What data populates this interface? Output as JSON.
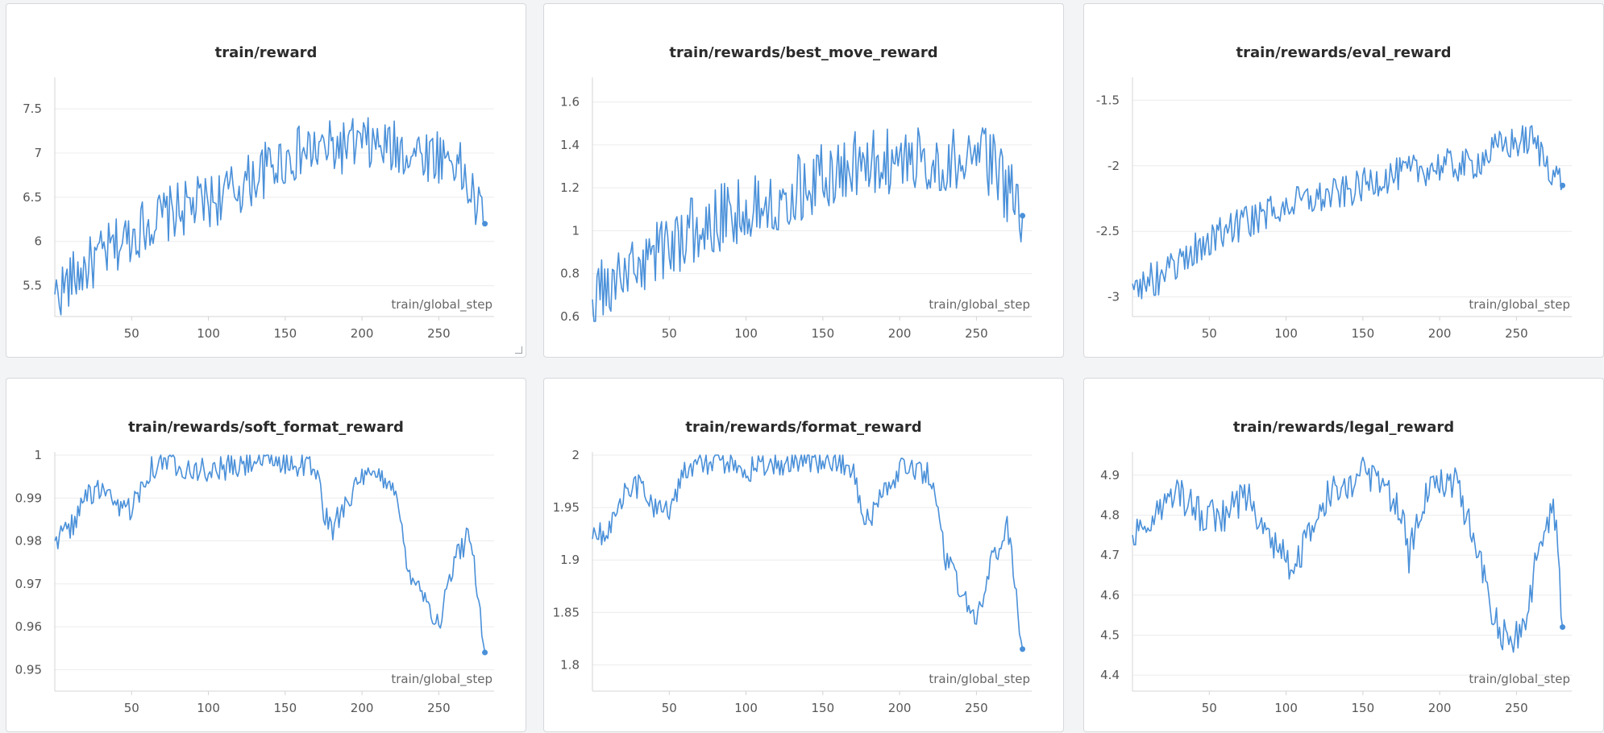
{
  "colors": {
    "line": "#4a90d9",
    "grid": "#ececec",
    "axis": "#d4d4d4"
  },
  "chart_data": [
    {
      "type": "line",
      "title": "train/reward",
      "xlabel": "train/global_step",
      "xlim": [
        0,
        286
      ],
      "ylim": [
        5.15,
        7.82
      ],
      "xticks": [
        "50",
        "100",
        "150",
        "200",
        "250"
      ],
      "yticks": [
        "5.5",
        "6",
        "6.5",
        "7",
        "7.5"
      ],
      "x": [
        0,
        20,
        40,
        60,
        80,
        100,
        120,
        140,
        160,
        180,
        200,
        220,
        240,
        260,
        280
      ],
      "y": [
        5.4,
        5.7,
        5.95,
        6.2,
        6.35,
        6.45,
        6.6,
        6.85,
        7.0,
        7.05,
        7.1,
        7.05,
        7.0,
        6.95,
        6.2
      ],
      "noise": 0.32
    },
    {
      "type": "line",
      "title": "train/rewards/best_move_reward",
      "xlabel": "train/global_step",
      "xlim": [
        0,
        286
      ],
      "ylim": [
        0.6,
        1.7
      ],
      "xticks": [
        "50",
        "100",
        "150",
        "200",
        "250"
      ],
      "yticks": [
        "0.6",
        "0.8",
        "1",
        "1.2",
        "1.4",
        "1.6"
      ],
      "x": [
        0,
        20,
        40,
        60,
        80,
        100,
        120,
        140,
        160,
        180,
        200,
        220,
        240,
        260,
        280
      ],
      "y": [
        0.68,
        0.78,
        0.9,
        0.98,
        1.05,
        1.1,
        1.16,
        1.22,
        1.28,
        1.32,
        1.33,
        1.33,
        1.33,
        1.32,
        1.07
      ],
      "noise": 0.16
    },
    {
      "type": "line",
      "title": "train/rewards/eval_reward",
      "xlabel": "train/global_step",
      "xlim": [
        0,
        286
      ],
      "ylim": [
        -3.15,
        -1.35
      ],
      "xticks": [
        "50",
        "100",
        "150",
        "200",
        "250"
      ],
      "yticks": [
        "-3",
        "-2.5",
        "-2",
        "-1.5"
      ],
      "x": [
        0,
        20,
        40,
        60,
        80,
        100,
        120,
        140,
        160,
        180,
        200,
        220,
        240,
        260,
        280
      ],
      "y": [
        -2.9,
        -2.85,
        -2.65,
        -2.5,
        -2.4,
        -2.3,
        -2.25,
        -2.2,
        -2.1,
        -2.05,
        -2.0,
        -2.0,
        -1.85,
        -1.8,
        -2.15
      ],
      "noise": 0.13
    },
    {
      "type": "line",
      "title": "train/rewards/soft_format_reward",
      "xlabel": "train/global_step",
      "xlim": [
        0,
        286
      ],
      "ylim": [
        0.945,
        1.0
      ],
      "xticks": [
        "50",
        "100",
        "150",
        "200",
        "250"
      ],
      "yticks": [
        "0.95",
        "0.96",
        "0.97",
        "0.98",
        "0.99",
        "1"
      ],
      "x": [
        0,
        10,
        20,
        30,
        40,
        50,
        60,
        70,
        80,
        90,
        100,
        110,
        120,
        130,
        140,
        150,
        160,
        170,
        175,
        180,
        190,
        200,
        210,
        220,
        230,
        240,
        250,
        260,
        270,
        275,
        280
      ],
      "y": [
        0.98,
        0.983,
        0.99,
        0.992,
        0.987,
        0.988,
        0.996,
        0.999,
        0.998,
        0.997,
        0.996,
        0.997,
        0.997,
        0.999,
        0.999,
        0.998,
        0.998,
        0.997,
        0.987,
        0.982,
        0.99,
        0.994,
        0.995,
        0.994,
        0.974,
        0.968,
        0.96,
        0.975,
        0.982,
        0.97,
        0.954
      ],
      "noise": 0.003
    },
    {
      "type": "line",
      "title": "train/rewards/format_reward",
      "xlabel": "train/global_step",
      "xlim": [
        0,
        286
      ],
      "ylim": [
        1.775,
        2.0
      ],
      "xticks": [
        "50",
        "100",
        "150",
        "200",
        "250"
      ],
      "yticks": [
        "1.8",
        "1.85",
        "1.9",
        "1.95",
        "2"
      ],
      "x": [
        0,
        10,
        20,
        30,
        40,
        50,
        60,
        70,
        80,
        90,
        100,
        110,
        120,
        130,
        140,
        150,
        160,
        170,
        175,
        180,
        190,
        200,
        210,
        220,
        230,
        240,
        250,
        260,
        270,
        275,
        280
      ],
      "y": [
        1.92,
        1.93,
        1.96,
        1.97,
        1.95,
        1.95,
        1.985,
        1.995,
        1.99,
        1.99,
        1.985,
        1.99,
        1.99,
        1.996,
        1.996,
        1.994,
        1.992,
        1.99,
        1.95,
        1.935,
        1.97,
        1.985,
        1.985,
        1.98,
        1.9,
        1.87,
        1.84,
        1.9,
        1.93,
        1.88,
        1.815
      ],
      "noise": 0.012
    },
    {
      "type": "line",
      "title": "train/rewards/legal_reward",
      "xlabel": "train/global_step",
      "xlim": [
        0,
        286
      ],
      "ylim": [
        4.36,
        4.95
      ],
      "xticks": [
        "50",
        "100",
        "150",
        "200",
        "250"
      ],
      "yticks": [
        "4.4",
        "4.5",
        "4.6",
        "4.7",
        "4.8",
        "4.9"
      ],
      "x": [
        0,
        15,
        30,
        45,
        60,
        75,
        90,
        100,
        110,
        120,
        135,
        150,
        165,
        175,
        180,
        195,
        210,
        220,
        235,
        245,
        255,
        265,
        275,
        280
      ],
      "y": [
        4.75,
        4.8,
        4.85,
        4.8,
        4.8,
        4.85,
        4.75,
        4.68,
        4.7,
        4.82,
        4.88,
        4.9,
        4.86,
        4.82,
        4.7,
        4.9,
        4.88,
        4.78,
        4.55,
        4.48,
        4.5,
        4.75,
        4.8,
        4.52
      ],
      "noise": 0.045
    }
  ]
}
